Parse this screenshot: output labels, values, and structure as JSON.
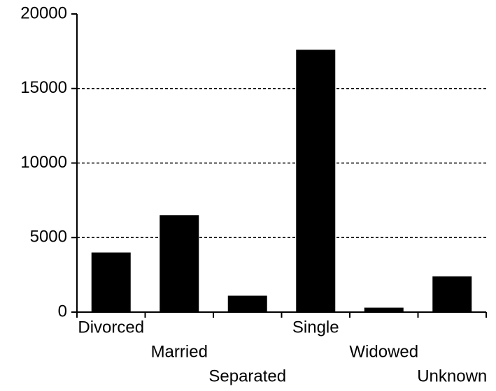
{
  "chart_data": {
    "type": "bar",
    "categories": [
      "Divorced",
      "Married",
      "Separated",
      "Single",
      "Widowed",
      "Unknown"
    ],
    "values": [
      4000,
      6500,
      1100,
      17600,
      300,
      2400
    ],
    "color": "#000000",
    "ylim": [
      0,
      20000
    ],
    "yticks": [
      0,
      5000,
      10000,
      15000,
      20000
    ],
    "grid": true
  }
}
